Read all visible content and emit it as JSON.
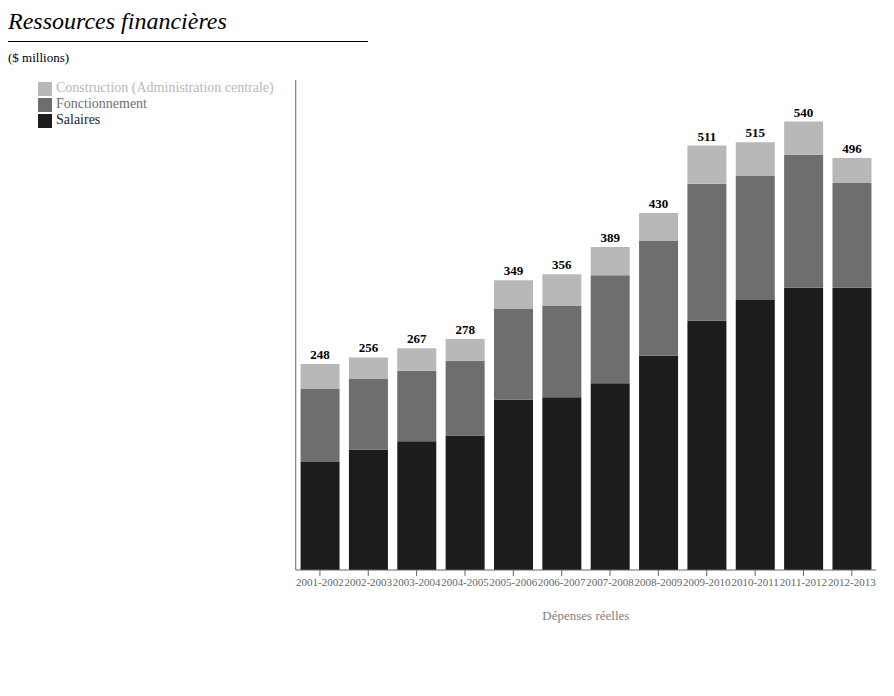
{
  "chart_data": {
    "type": "bar",
    "title": "Ressources financières",
    "ylabel": "($ millions)",
    "xlabel": "Dépenses réelles",
    "categories": [
      "2001-2002",
      "2002-2003",
      "2003-2004",
      "2004-2005",
      "2005-2006",
      "2006-2007",
      "2007-2008",
      "2008-2009",
      "2009-2010",
      "2010-2011",
      "2011-2012",
      "2012-2013"
    ],
    "series": [
      {
        "name": "Salaires",
        "color": "#1c1c1c",
        "values": [
          130,
          145,
          155,
          162,
          205,
          208,
          225,
          258,
          300,
          325,
          340,
          340
        ]
      },
      {
        "name": "Fonctionnement",
        "color": "#6e6e6e",
        "values": [
          88,
          85,
          85,
          90,
          110,
          110,
          130,
          138,
          165,
          150,
          160,
          126
        ]
      },
      {
        "name": "Construction (Administration centrale)",
        "color": "#b8b8b8",
        "values": [
          30,
          26,
          27,
          26,
          34,
          38,
          34,
          34,
          46,
          40,
          40,
          30
        ]
      }
    ],
    "totals": [
      248,
      256,
      267,
      278,
      349,
      356,
      389,
      430,
      511,
      515,
      540,
      496
    ],
    "stacked": true,
    "ylim": [
      0,
      590
    ],
    "yticks": [],
    "tick_labels": "x",
    "grid": false,
    "legend": "upper left"
  }
}
